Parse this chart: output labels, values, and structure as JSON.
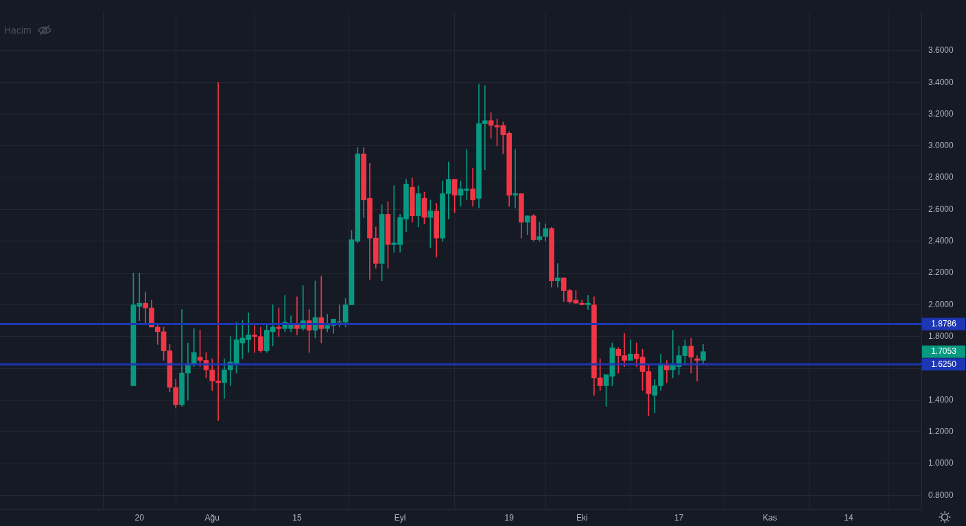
{
  "chart_data": {
    "type": "candlestick",
    "x": [
      "--07-19",
      "--07-20",
      "--07-21",
      "--07-22",
      "--07-23",
      "--07-24",
      "--07-25",
      "--07-26",
      "--07-27",
      "--07-28",
      "--07-29",
      "--07-30",
      "--07-31",
      "--08-01",
      "--08-02",
      "--08-03",
      "--08-04",
      "--08-05",
      "--08-06",
      "--08-07",
      "--08-08",
      "--08-09",
      "--08-10",
      "--08-11",
      "--08-12",
      "--08-13",
      "--08-14",
      "--08-15",
      "--08-16",
      "--08-17",
      "--08-18",
      "--08-19",
      "--08-20",
      "--08-21",
      "--08-22",
      "--08-23",
      "--08-24",
      "--08-25",
      "--08-26",
      "--08-27",
      "--08-28",
      "--08-29",
      "--08-30",
      "--08-31",
      "--09-01",
      "--09-02",
      "--09-03",
      "--09-04",
      "--09-05",
      "--09-06",
      "--09-07",
      "--09-08",
      "--09-09",
      "--09-10",
      "--09-11",
      "--09-12",
      "--09-13",
      "--09-14",
      "--09-15",
      "--09-16",
      "--09-17",
      "--09-18",
      "--09-19",
      "--09-20",
      "--09-21",
      "--09-22",
      "--09-23",
      "--09-24",
      "--09-25",
      "--09-26",
      "--09-27",
      "--09-28",
      "--09-29",
      "--09-30",
      "--10-01",
      "--10-02",
      "--10-03",
      "--10-04",
      "--10-05",
      "--10-06",
      "--10-07",
      "--10-08",
      "--10-09",
      "--10-10",
      "--10-11",
      "--10-12",
      "--10-13",
      "--10-14",
      "--10-15",
      "--10-16",
      "--10-17",
      "--10-18",
      "--10-19",
      "--10-20",
      "--10-21"
    ],
    "ohlc": [
      [
        1.49,
        2.2,
        1.49,
        2.0
      ],
      [
        1.99,
        2.2,
        1.9,
        2.01
      ],
      [
        2.01,
        2.08,
        1.88,
        1.98
      ],
      [
        1.98,
        2.03,
        1.86,
        1.86
      ],
      [
        1.86,
        1.88,
        1.75,
        1.83
      ],
      [
        1.83,
        1.86,
        1.65,
        1.71
      ],
      [
        1.71,
        1.75,
        1.45,
        1.48
      ],
      [
        1.48,
        1.53,
        1.35,
        1.37
      ],
      [
        1.37,
        1.97,
        1.36,
        1.57
      ],
      [
        1.57,
        1.76,
        1.4,
        1.63
      ],
      [
        1.63,
        1.85,
        1.61,
        1.7
      ],
      [
        1.67,
        1.84,
        1.61,
        1.65
      ],
      [
        1.65,
        1.7,
        1.54,
        1.59
      ],
      [
        1.59,
        1.66,
        1.46,
        1.52
      ],
      [
        1.52,
        3.4,
        1.27,
        1.51
      ],
      [
        1.51,
        1.66,
        1.41,
        1.59
      ],
      [
        1.59,
        1.8,
        1.49,
        1.64
      ],
      [
        1.63,
        1.89,
        1.57,
        1.78
      ],
      [
        1.76,
        1.9,
        1.66,
        1.79
      ],
      [
        1.78,
        1.95,
        1.7,
        1.81
      ],
      [
        1.81,
        1.87,
        1.7,
        1.8
      ],
      [
        1.8,
        1.86,
        1.7,
        1.71
      ],
      [
        1.71,
        1.88,
        1.7,
        1.84
      ],
      [
        1.83,
        2.0,
        1.74,
        1.86
      ],
      [
        1.86,
        1.98,
        1.8,
        1.85
      ],
      [
        1.85,
        2.06,
        1.83,
        1.89
      ],
      [
        1.85,
        1.93,
        1.83,
        1.88
      ],
      [
        1.88,
        2.05,
        1.81,
        1.85
      ],
      [
        1.85,
        2.12,
        1.84,
        1.9
      ],
      [
        1.9,
        1.97,
        1.7,
        1.84
      ],
      [
        1.84,
        2.15,
        1.79,
        1.92
      ],
      [
        1.92,
        2.18,
        1.76,
        1.85
      ],
      [
        1.85,
        1.94,
        1.83,
        1.87
      ],
      [
        1.87,
        1.91,
        1.82,
        1.91
      ],
      [
        1.89,
        2.0,
        1.86,
        1.89
      ],
      [
        1.89,
        2.04,
        1.86,
        2.0
      ],
      [
        2.0,
        2.47,
        2.0,
        2.41
      ],
      [
        2.4,
        2.99,
        2.39,
        2.95
      ],
      [
        2.95,
        2.99,
        2.55,
        2.66
      ],
      [
        2.67,
        2.89,
        2.16,
        2.42
      ],
      [
        2.42,
        2.49,
        2.23,
        2.26
      ],
      [
        2.26,
        2.63,
        2.15,
        2.57
      ],
      [
        2.57,
        2.65,
        2.23,
        2.38
      ],
      [
        2.38,
        2.75,
        2.33,
        2.39
      ],
      [
        2.38,
        2.57,
        2.33,
        2.55
      ],
      [
        2.54,
        2.79,
        2.46,
        2.76
      ],
      [
        2.74,
        2.8,
        2.52,
        2.56
      ],
      [
        2.56,
        2.75,
        2.49,
        2.7
      ],
      [
        2.67,
        2.71,
        2.51,
        2.55
      ],
      [
        2.55,
        2.66,
        2.36,
        2.59
      ],
      [
        2.59,
        2.64,
        2.3,
        2.42
      ],
      [
        2.42,
        2.78,
        2.4,
        2.7
      ],
      [
        2.7,
        2.9,
        2.54,
        2.79
      ],
      [
        2.79,
        2.79,
        2.58,
        2.69
      ],
      [
        2.69,
        2.78,
        2.62,
        2.73
      ],
      [
        2.72,
        2.98,
        2.66,
        2.73
      ],
      [
        2.73,
        2.86,
        2.62,
        2.66
      ],
      [
        2.67,
        3.39,
        2.61,
        3.14
      ],
      [
        3.14,
        3.38,
        2.85,
        3.16
      ],
      [
        3.16,
        3.21,
        3.05,
        3.13
      ],
      [
        3.13,
        3.17,
        3.0,
        3.12
      ],
      [
        3.13,
        3.15,
        2.95,
        3.07
      ],
      [
        3.08,
        3.09,
        2.62,
        2.69
      ],
      [
        2.69,
        2.98,
        2.61,
        2.7
      ],
      [
        2.7,
        2.7,
        2.42,
        2.52
      ],
      [
        2.52,
        2.56,
        2.44,
        2.56
      ],
      [
        2.56,
        2.57,
        2.4,
        2.41
      ],
      [
        2.41,
        2.52,
        2.4,
        2.43
      ],
      [
        2.43,
        2.51,
        2.4,
        2.48
      ],
      [
        2.48,
        2.49,
        2.11,
        2.15
      ],
      [
        2.15,
        2.26,
        2.11,
        2.17
      ],
      [
        2.17,
        2.17,
        2.02,
        2.09
      ],
      [
        2.09,
        2.1,
        2.01,
        2.02
      ],
      [
        2.03,
        2.09,
        2.01,
        2.01
      ],
      [
        2.01,
        2.03,
        2.0,
        2.0
      ],
      [
        2.0,
        2.06,
        1.97,
        2.01
      ],
      [
        2.0,
        2.05,
        1.43,
        1.54
      ],
      [
        1.54,
        1.66,
        1.46,
        1.49
      ],
      [
        1.49,
        1.56,
        1.36,
        1.56
      ],
      [
        1.55,
        1.76,
        1.49,
        1.73
      ],
      [
        1.72,
        1.73,
        1.57,
        1.68
      ],
      [
        1.68,
        1.82,
        1.61,
        1.65
      ],
      [
        1.65,
        1.78,
        1.65,
        1.69
      ],
      [
        1.69,
        1.76,
        1.61,
        1.66
      ],
      [
        1.67,
        1.72,
        1.46,
        1.58
      ],
      [
        1.58,
        1.62,
        1.3,
        1.44
      ],
      [
        1.43,
        1.53,
        1.32,
        1.49
      ],
      [
        1.49,
        1.69,
        1.46,
        1.62
      ],
      [
        1.62,
        1.65,
        1.51,
        1.59
      ],
      [
        1.59,
        1.84,
        1.54,
        1.62
      ],
      [
        1.61,
        1.74,
        1.56,
        1.68
      ],
      [
        1.68,
        1.78,
        1.63,
        1.74
      ],
      [
        1.74,
        1.79,
        1.57,
        1.67
      ],
      [
        1.66,
        1.68,
        1.52,
        1.65
      ],
      [
        1.65,
        1.75,
        1.62,
        1.7053
      ]
    ],
    "colors": [
      "#089981",
      "#089981",
      "#f23645",
      "#f23645",
      "#f23645",
      "#f23645",
      "#f23645",
      "#f23645",
      "#089981",
      "#089981",
      "#089981",
      "#f23645",
      "#f23645",
      "#f23645",
      "#f23645",
      "#089981",
      "#089981",
      "#089981",
      "#089981",
      "#089981",
      "#f23645",
      "#f23645",
      "#089981",
      "#089981",
      "#f23645",
      "#089981",
      "#089981",
      "#f23645",
      "#089981",
      "#f23645",
      "#089981",
      "#f23645",
      "#089981",
      "#089981",
      "#089981",
      "#089981",
      "#089981",
      "#089981",
      "#f23645",
      "#f23645",
      "#f23645",
      "#089981",
      "#f23645",
      "#089981",
      "#089981",
      "#089981",
      "#f23645",
      "#089981",
      "#f23645",
      "#089981",
      "#f23645",
      "#089981",
      "#089981",
      "#f23645",
      "#089981",
      "#089981",
      "#f23645",
      "#089981",
      "#089981",
      "#f23645",
      "#f23645",
      "#f23645",
      "#f23645",
      "#089981",
      "#f23645",
      "#089981",
      "#f23645",
      "#089981",
      "#089981",
      "#f23645",
      "#089981",
      "#f23645",
      "#f23645",
      "#f23645",
      "#f23645",
      "#089981",
      "#f23645",
      "#f23645",
      "#089981",
      "#089981",
      "#f23645",
      "#f23645",
      "#089981",
      "#f23645",
      "#f23645",
      "#f23645",
      "#089981",
      "#089981",
      "#f23645",
      "#089981",
      "#089981",
      "#089981",
      "#f23645",
      "#f23645",
      "#089981"
    ],
    "xlim": [
      "--06-27",
      "--11-26"
    ],
    "xticks": [
      {
        "value": "--07-20",
        "label": "20"
      },
      {
        "value": "--08-01",
        "label": "Ağu"
      },
      {
        "value": "--08-15",
        "label": "15"
      },
      {
        "value": "--09-01",
        "label": "Eyl"
      },
      {
        "value": "--09-19",
        "label": "19"
      },
      {
        "value": "--10-01",
        "label": "Eki"
      },
      {
        "value": "--10-17",
        "label": "17"
      },
      {
        "value": "--11-01",
        "label": "Kas"
      },
      {
        "value": "--11-14",
        "label": "14"
      }
    ],
    "ylim": [
      0.715,
      3.845
    ],
    "yticks": [
      {
        "value": 0.8,
        "label": "0.8000"
      },
      {
        "value": 1.0,
        "label": "1.0000"
      },
      {
        "value": 1.2,
        "label": "1.2000"
      },
      {
        "value": 1.4,
        "label": "1.4000"
      },
      {
        "value": 1.6,
        "label": null
      },
      {
        "value": 1.8,
        "label": "1.8000"
      },
      {
        "value": 2.0,
        "label": "2.0000"
      },
      {
        "value": 2.2,
        "label": "2.2000"
      },
      {
        "value": 2.4,
        "label": "2.4000"
      },
      {
        "value": 2.6,
        "label": "2.6000"
      },
      {
        "value": 2.8,
        "label": "2.8000"
      },
      {
        "value": 3.0,
        "label": "3.0000"
      },
      {
        "value": 3.2,
        "label": "3.2000"
      },
      {
        "value": 3.4,
        "label": "3.4000"
      },
      {
        "value": 3.6,
        "label": "3.6000"
      }
    ],
    "ref_lines": [
      {
        "axis": "y",
        "value": 1.8786,
        "label": "1.8786",
        "color": "#1c36b4"
      },
      {
        "axis": "y",
        "value": 1.625,
        "label": "1.6250",
        "color": "#1c36b4"
      }
    ],
    "annotations": [
      "Hacim",
      "1.7053"
    ],
    "grid": true,
    "legend": false
  }
}
